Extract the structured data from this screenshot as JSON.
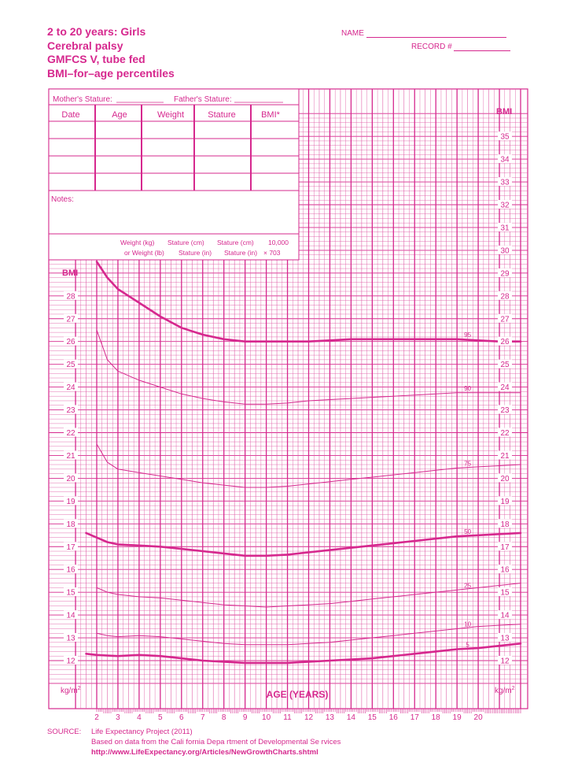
{
  "header": {
    "title_lines": [
      "2 to 20 years: Girls",
      "Cerebral palsy",
      "GMFCS V, tube fed",
      "BMI–for–age percentiles"
    ],
    "name_label": "NAME",
    "record_label": "RECORD #"
  },
  "record_box": {
    "mother_label": "Mother's Stature:",
    "father_label": "Father's Stature:",
    "columns": [
      "Date",
      "Age",
      "Weight",
      "Stature",
      "BMI*"
    ],
    "notes_label": "Notes:",
    "formula": {
      "row1": [
        "Weight (kg)",
        "Stature (cm)",
        "Stature (cm)",
        "10,000"
      ],
      "row2": [
        "or Weight (lb)",
        "Stature (in)",
        "Stature (in)",
        "× 703"
      ]
    }
  },
  "labels": {
    "bmi_left": "BMI",
    "bmi_right": "BMI",
    "unit_left": "kg/m",
    "unit_right": "kg/m",
    "unit_sup": "2",
    "xlabel": "AGE (YEARS)"
  },
  "source": {
    "label": "SOURCE:",
    "line1": "Life Expectancy Project (2011)",
    "line2": "Based on data from the Cali  fornia Depa  rtment of Developmental Se  rvices",
    "url": "http://www.LifeExpectancy.org/Articles/NewGrowthCharts.shtml"
  },
  "colors": {
    "accent": "#d6288e",
    "grid": "#e060a8"
  },
  "chart_data": {
    "type": "line",
    "xlabel": "AGE (YEARS)",
    "ylabel": "BMI",
    "xlim": [
      1,
      22
    ],
    "ylim": [
      11,
      36
    ],
    "x_ticks": [
      2,
      3,
      4,
      5,
      6,
      7,
      8,
      9,
      10,
      11,
      12,
      13,
      14,
      15,
      16,
      17,
      18,
      19,
      20
    ],
    "y_ticks_right": [
      12,
      13,
      14,
      15,
      16,
      17,
      18,
      19,
      20,
      21,
      22,
      23,
      24,
      25,
      26,
      27,
      28,
      29,
      30,
      31,
      32,
      33,
      34,
      35
    ],
    "y_ticks_left": [
      12,
      13,
      14,
      15,
      16,
      17,
      18,
      19,
      20,
      21,
      22,
      23,
      24,
      25,
      26,
      27,
      28
    ],
    "series": [
      {
        "name": "95",
        "bold": true,
        "x": [
          2,
          2.5,
          3,
          4,
          5,
          6,
          7,
          8,
          9,
          10,
          11,
          12,
          13,
          14,
          15,
          16,
          17,
          18,
          19,
          20,
          21,
          22
        ],
        "y": [
          29.5,
          28.8,
          28.3,
          27.7,
          27.1,
          26.6,
          26.3,
          26.1,
          26.0,
          26.0,
          26.0,
          26.0,
          26.05,
          26.1,
          26.1,
          26.1,
          26.1,
          26.1,
          26.1,
          26.05,
          26.0,
          26.0
        ]
      },
      {
        "name": "90",
        "bold": false,
        "x": [
          2,
          2.5,
          3,
          4,
          5,
          6,
          7,
          8,
          9,
          10,
          11,
          12,
          13,
          14,
          15,
          16,
          17,
          18,
          19,
          20,
          21,
          22
        ],
        "y": [
          26.5,
          25.2,
          24.7,
          24.3,
          24.0,
          23.7,
          23.5,
          23.35,
          23.25,
          23.25,
          23.3,
          23.4,
          23.45,
          23.5,
          23.55,
          23.6,
          23.65,
          23.7,
          23.75,
          23.75,
          23.75,
          23.75
        ]
      },
      {
        "name": "75",
        "bold": false,
        "x": [
          2,
          2.5,
          3,
          4,
          5,
          6,
          7,
          8,
          9,
          10,
          11,
          12,
          13,
          14,
          15,
          16,
          17,
          18,
          19,
          20,
          21,
          22
        ],
        "y": [
          21.5,
          20.7,
          20.4,
          20.25,
          20.1,
          19.95,
          19.8,
          19.7,
          19.6,
          19.6,
          19.65,
          19.75,
          19.85,
          19.95,
          20.05,
          20.15,
          20.25,
          20.35,
          20.45,
          20.5,
          20.55,
          20.6
        ]
      },
      {
        "name": "50",
        "bold": true,
        "x": [
          1.5,
          2,
          2.5,
          3,
          4,
          5,
          6,
          7,
          8,
          9,
          10,
          11,
          12,
          13,
          14,
          15,
          16,
          17,
          18,
          19,
          20,
          21,
          22
        ],
        "y": [
          17.6,
          17.4,
          17.2,
          17.1,
          17.05,
          17.0,
          16.9,
          16.8,
          16.7,
          16.6,
          16.6,
          16.65,
          16.75,
          16.85,
          16.95,
          17.05,
          17.15,
          17.25,
          17.35,
          17.45,
          17.5,
          17.55,
          17.6
        ]
      },
      {
        "name": "25",
        "bold": false,
        "x": [
          2,
          2.5,
          3,
          4,
          5,
          6,
          7,
          8,
          9,
          10,
          11,
          12,
          13,
          14,
          15,
          16,
          17,
          18,
          19,
          20,
          21,
          22
        ],
        "y": [
          15.2,
          15.0,
          14.9,
          14.8,
          14.75,
          14.65,
          14.55,
          14.45,
          14.4,
          14.35,
          14.4,
          14.45,
          14.5,
          14.6,
          14.7,
          14.8,
          14.9,
          15.0,
          15.1,
          15.2,
          15.3,
          15.4
        ]
      },
      {
        "name": "10",
        "bold": false,
        "x": [
          2,
          2.5,
          3,
          4,
          5,
          6,
          7,
          8,
          9,
          10,
          11,
          12,
          13,
          14,
          15,
          16,
          17,
          18,
          19,
          20,
          21,
          22
        ],
        "y": [
          13.2,
          13.1,
          13.05,
          13.1,
          13.05,
          12.95,
          12.85,
          12.75,
          12.7,
          12.7,
          12.7,
          12.75,
          12.8,
          12.9,
          13.0,
          13.1,
          13.2,
          13.3,
          13.4,
          13.5,
          13.55,
          13.6
        ]
      },
      {
        "name": "5",
        "bold": true,
        "x": [
          1.5,
          2,
          2.5,
          3,
          4,
          5,
          6,
          7,
          8,
          9,
          10,
          11,
          12,
          13,
          14,
          15,
          16,
          17,
          18,
          19,
          20,
          21,
          22
        ],
        "y": [
          12.3,
          12.25,
          12.22,
          12.2,
          12.25,
          12.2,
          12.1,
          12.0,
          11.95,
          11.9,
          11.9,
          11.9,
          11.95,
          12.0,
          12.05,
          12.1,
          12.2,
          12.3,
          12.4,
          12.5,
          12.55,
          12.65,
          12.75
        ]
      }
    ]
  }
}
